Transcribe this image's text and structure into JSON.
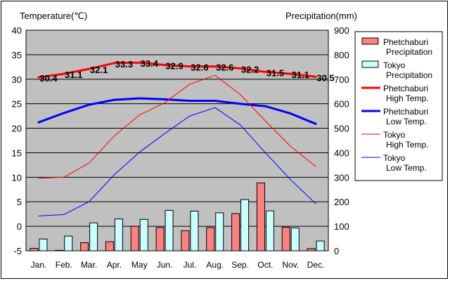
{
  "chart_data": {
    "type": "bar+line",
    "left_axis_label": "Temperature(℃)",
    "right_axis_label": "Precipitation(mm)",
    "categories": [
      "Jan.",
      "Feb.",
      "Mar.",
      "Apr.",
      "May",
      "Jun.",
      "Jul.",
      "Aug.",
      "Sep.",
      "Oct.",
      "Nov.",
      "Dec."
    ],
    "left_ylim": [
      -5,
      40
    ],
    "left_ticks": [
      -5,
      0,
      5,
      10,
      15,
      20,
      25,
      30,
      35,
      40
    ],
    "right_ylim": [
      0,
      900
    ],
    "right_ticks": [
      0,
      100,
      200,
      300,
      400,
      500,
      600,
      700,
      800,
      900
    ],
    "grid": true,
    "legend_position": "right",
    "bar_series": [
      {
        "name": "Phetchaburi Precipitation",
        "legend_lines": [
          "Phetchaburi",
          "Precipitation"
        ],
        "color": "#ff8080",
        "values": [
          10,
          2,
          33,
          37,
          100,
          95,
          82,
          95,
          152,
          277,
          96,
          9
        ]
      },
      {
        "name": "Tokyo Precipitation",
        "legend_lines": [
          "Tokyo",
          "Precipitation"
        ],
        "color": "#ccffff",
        "values": [
          48,
          60,
          114,
          130,
          128,
          165,
          162,
          155,
          209,
          163,
          93,
          40
        ]
      }
    ],
    "line_series": [
      {
        "name": "Phetchaburi High Temp.",
        "legend_lines": [
          "Phetchaburi",
          "High Temp."
        ],
        "color": "#ff0000",
        "width": 3,
        "values": [
          30.4,
          31.1,
          32.1,
          33.3,
          33.4,
          32.9,
          32.6,
          32.6,
          32.2,
          31.5,
          31.1,
          30.5
        ],
        "labels": [
          "30.4",
          "31.1",
          "32.1",
          "33.3",
          "33.4",
          "32.9",
          "32.6",
          "32.6",
          "32.2",
          "31.5",
          "31.1",
          "30.5"
        ]
      },
      {
        "name": "Phetchaburi Low Temp.",
        "legend_lines": [
          "Phetchaburi",
          "Low Temp."
        ],
        "color": "#0000ff",
        "width": 3,
        "values": [
          21.2,
          23.1,
          24.8,
          25.8,
          26.1,
          25.9,
          25.6,
          25.6,
          25.0,
          24.5,
          23.0,
          20.9
        ]
      },
      {
        "name": "Tokyo High Temp.",
        "legend_lines": [
          "Tokyo",
          "High Temp."
        ],
        "color": "#ff0000",
        "width": 1,
        "values": [
          9.8,
          10.0,
          12.9,
          18.4,
          22.7,
          25.2,
          29.0,
          30.8,
          26.9,
          21.5,
          16.3,
          12.2
        ]
      },
      {
        "name": "Tokyo Low Temp.",
        "legend_lines": [
          "Tokyo",
          "Low Temp."
        ],
        "color": "#0000ff",
        "width": 1,
        "values": [
          2.1,
          2.4,
          5.0,
          10.5,
          15.1,
          18.9,
          22.5,
          24.2,
          20.7,
          15.0,
          9.5,
          4.6
        ]
      }
    ]
  }
}
